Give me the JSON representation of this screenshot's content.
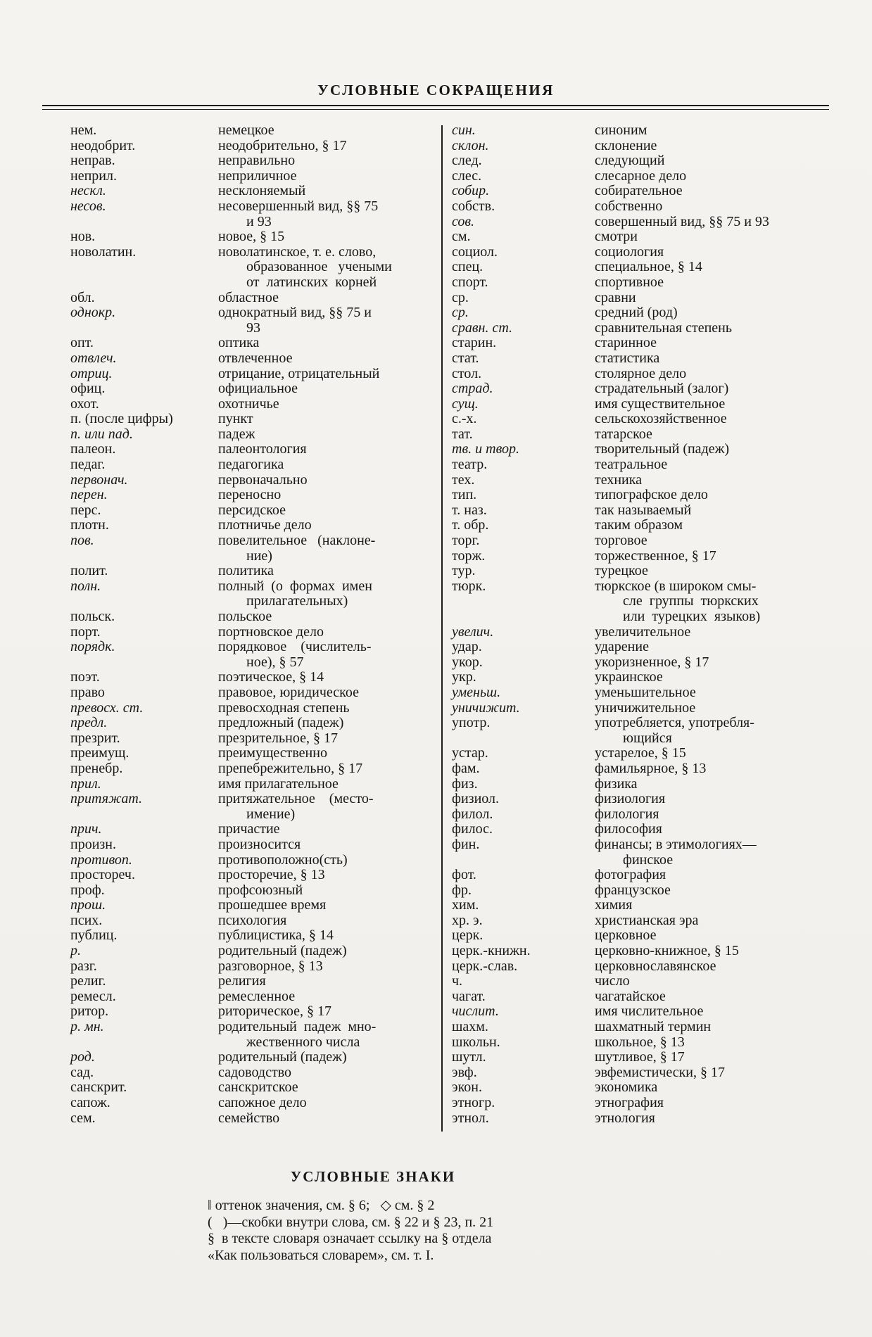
{
  "page": {
    "title": "УСЛОВНЫЕ СОКРАЩЕНИЯ",
    "signs": {
      "title": "УСЛОВНЫЕ ЗНАКИ",
      "lines": [
        "‖ оттенок значения, см. § 6;   ◇ см. § 2",
        "(   )—скобки внутри слова, см. § 22 и § 23, п. 21",
        "§  в тексте словаря означает ссылку на § отдела",
        "«Как пользоваться словарем», см. т. I."
      ]
    }
  },
  "abbreviations": {
    "left": [
      {
        "a": "нем.",
        "d": [
          "немецкое"
        ]
      },
      {
        "a": "неодобрит.",
        "d": [
          "неодобрительно, § 17"
        ]
      },
      {
        "a": "неправ.",
        "d": [
          "неправильно"
        ]
      },
      {
        "a": "неприл.",
        "d": [
          "неприличное"
        ]
      },
      {
        "a": "нескл.",
        "i": true,
        "d": [
          "несклоняемый"
        ]
      },
      {
        "a": "несов.",
        "i": true,
        "d": [
          "несовершенный вид, §§ 75",
          "и 93"
        ]
      },
      {
        "a": "нов.",
        "d": [
          "новое, § 15"
        ]
      },
      {
        "a": "новолатин.",
        "d": [
          "новолатинское, т. е. слово,",
          "образованное   учеными",
          "от  латинских  корней"
        ]
      },
      {
        "a": "обл.",
        "d": [
          "областное"
        ]
      },
      {
        "a": "однокр.",
        "i": true,
        "d": [
          "однократный вид, §§ 75 и",
          "93"
        ]
      },
      {
        "a": "опт.",
        "d": [
          "оптика"
        ]
      },
      {
        "a": "отвлеч.",
        "i": true,
        "d": [
          "отвлеченное"
        ]
      },
      {
        "a": "отриц.",
        "i": true,
        "d": [
          "отрицание, отрицательный"
        ]
      },
      {
        "a": "офиц.",
        "d": [
          "официальное"
        ]
      },
      {
        "a": "охот.",
        "d": [
          "охотничье"
        ]
      },
      {
        "a": "п. (после цифры)",
        "d": [
          "пункт"
        ]
      },
      {
        "a": "п. или пад.",
        "i": true,
        "d": [
          "падеж"
        ]
      },
      {
        "a": "палеон.",
        "d": [
          "палеонтология"
        ]
      },
      {
        "a": "педаг.",
        "d": [
          "педагогика"
        ]
      },
      {
        "a": "первонач.",
        "i": true,
        "d": [
          "первоначально"
        ]
      },
      {
        "a": "перен.",
        "i": true,
        "d": [
          "переносно"
        ]
      },
      {
        "a": "перс.",
        "d": [
          "персидское"
        ]
      },
      {
        "a": "плотн.",
        "d": [
          "плотничье дело"
        ]
      },
      {
        "a": "пов.",
        "i": true,
        "d": [
          "повелительное   (наклоне-",
          "ние)"
        ]
      },
      {
        "a": "полит.",
        "d": [
          "политика"
        ]
      },
      {
        "a": "полн.",
        "i": true,
        "d": [
          "полный  (о  формах  имен",
          "прилагательных)"
        ]
      },
      {
        "a": "польск.",
        "d": [
          "польское"
        ]
      },
      {
        "a": "порт.",
        "d": [
          "портновское дело"
        ]
      },
      {
        "a": "порядк.",
        "i": true,
        "d": [
          "порядковое    (числитель-",
          "ное), § 57"
        ]
      },
      {
        "a": "поэт.",
        "d": [
          "поэтическое, § 14"
        ]
      },
      {
        "a": "право",
        "d": [
          "правовое, юридическое"
        ]
      },
      {
        "a": "превосх. ст.",
        "i": true,
        "d": [
          "превосходная степень"
        ]
      },
      {
        "a": "предл.",
        "i": true,
        "d": [
          "предложный (падеж)"
        ]
      },
      {
        "a": "презрит.",
        "d": [
          "презрительное, § 17"
        ]
      },
      {
        "a": "преимущ.",
        "d": [
          "преимущественно"
        ]
      },
      {
        "a": "пренебр.",
        "d": [
          "препебрежительно, § 17"
        ]
      },
      {
        "a": "прил.",
        "i": true,
        "d": [
          "имя прилагательное"
        ]
      },
      {
        "a": "притяжат.",
        "i": true,
        "d": [
          "притяжательное    (место-",
          "имение)"
        ]
      },
      {
        "a": "прич.",
        "i": true,
        "d": [
          "причастие"
        ]
      },
      {
        "a": "произн.",
        "d": [
          "произносится"
        ]
      },
      {
        "a": "противоп.",
        "i": true,
        "d": [
          "противоположно(сть)"
        ]
      },
      {
        "a": "простореч.",
        "d": [
          "просторечие, § 13"
        ]
      },
      {
        "a": "проф.",
        "d": [
          "профсоюзный"
        ]
      },
      {
        "a": "прош.",
        "i": true,
        "d": [
          "прошедшее время"
        ]
      },
      {
        "a": "псих.",
        "d": [
          "психология"
        ]
      },
      {
        "a": "публиц.",
        "d": [
          "публицистика, § 14"
        ]
      },
      {
        "a": "р.",
        "i": true,
        "d": [
          "родительный (падеж)"
        ]
      },
      {
        "a": "разг.",
        "d": [
          "разговорное, § 13"
        ]
      },
      {
        "a": "религ.",
        "d": [
          "религия"
        ]
      },
      {
        "a": "ремесл.",
        "d": [
          "ремесленное"
        ]
      },
      {
        "a": "ритор.",
        "d": [
          "риторическое, § 17"
        ]
      },
      {
        "a": "р. мн.",
        "i": true,
        "d": [
          "родительный  падеж  мно-",
          "жественного числа"
        ]
      },
      {
        "a": "род.",
        "i": true,
        "d": [
          "родительный (падеж)"
        ]
      },
      {
        "a": "сад.",
        "d": [
          "садоводство"
        ]
      },
      {
        "a": "санскрит.",
        "d": [
          "санскритское"
        ]
      },
      {
        "a": "сапож.",
        "d": [
          "сапожное дело"
        ]
      },
      {
        "a": "сем.",
        "d": [
          "семейство"
        ]
      }
    ],
    "right": [
      {
        "a": "син.",
        "i": true,
        "d": [
          "синоним"
        ]
      },
      {
        "a": "склон.",
        "i": true,
        "d": [
          "склонение"
        ]
      },
      {
        "a": "след.",
        "d": [
          "следующий"
        ]
      },
      {
        "a": "слес.",
        "d": [
          "слесарное дело"
        ]
      },
      {
        "a": "собир.",
        "i": true,
        "d": [
          "собирательное"
        ]
      },
      {
        "a": "собств.",
        "d": [
          "собственно"
        ]
      },
      {
        "a": "сов.",
        "i": true,
        "d": [
          "совершенный вид, §§ 75 и 93"
        ]
      },
      {
        "a": "см.",
        "d": [
          "смотри"
        ]
      },
      {
        "a": "социол.",
        "d": [
          "социология"
        ]
      },
      {
        "a": "спец.",
        "d": [
          "специальное, § 14"
        ]
      },
      {
        "a": "спорт.",
        "d": [
          "спортивное"
        ]
      },
      {
        "a": "ср.",
        "d": [
          "сравни"
        ]
      },
      {
        "a": "ср.",
        "i": true,
        "d": [
          "средний (род)"
        ]
      },
      {
        "a": "сравн. ст.",
        "i": true,
        "d": [
          "сравнительная степень"
        ]
      },
      {
        "a": "старин.",
        "d": [
          "старинное"
        ]
      },
      {
        "a": "стат.",
        "d": [
          "статистика"
        ]
      },
      {
        "a": "стол.",
        "d": [
          "столярное дело"
        ]
      },
      {
        "a": "страд.",
        "i": true,
        "d": [
          "страдательный (залог)"
        ]
      },
      {
        "a": "сущ.",
        "i": true,
        "d": [
          "имя существительное"
        ]
      },
      {
        "a": "с.-х.",
        "d": [
          "сельскохозяйственное"
        ]
      },
      {
        "a": "тат.",
        "d": [
          "татарское"
        ]
      },
      {
        "a": "тв. и твор.",
        "i": true,
        "d": [
          "творительный (падеж)"
        ]
      },
      {
        "a": "театр.",
        "d": [
          "театральное"
        ]
      },
      {
        "a": "тех.",
        "d": [
          "техника"
        ]
      },
      {
        "a": "тип.",
        "d": [
          "типографское дело"
        ]
      },
      {
        "a": "т. наз.",
        "d": [
          "так называемый"
        ]
      },
      {
        "a": "т. обр.",
        "d": [
          "таким образом"
        ]
      },
      {
        "a": "торг.",
        "d": [
          "торговое"
        ]
      },
      {
        "a": "торж.",
        "d": [
          "торжественное, § 17"
        ]
      },
      {
        "a": "тур.",
        "d": [
          "турецкое"
        ]
      },
      {
        "a": "тюрк.",
        "d": [
          "тюркское (в широком смы-",
          "сле  группы  тюркских",
          "или  турецких  языков)"
        ]
      },
      {
        "a": "увелич.",
        "i": true,
        "d": [
          "увеличительное"
        ]
      },
      {
        "a": "удар.",
        "d": [
          "ударение"
        ]
      },
      {
        "a": "укор.",
        "d": [
          "укоризненное, § 17"
        ]
      },
      {
        "a": "укр.",
        "d": [
          "украинское"
        ]
      },
      {
        "a": "уменьш.",
        "i": true,
        "d": [
          "уменьшительное"
        ]
      },
      {
        "a": "уничижит.",
        "i": true,
        "d": [
          "уничижительное"
        ]
      },
      {
        "a": "употр.",
        "d": [
          "употребляется, употребля-",
          "ющийся"
        ]
      },
      {
        "a": "устар.",
        "d": [
          "устарелое, § 15"
        ]
      },
      {
        "a": "фам.",
        "d": [
          "фамильярное, § 13"
        ]
      },
      {
        "a": "физ.",
        "d": [
          "физика"
        ]
      },
      {
        "a": "физиол.",
        "d": [
          "физиология"
        ]
      },
      {
        "a": "филол.",
        "d": [
          "филология"
        ]
      },
      {
        "a": "филос.",
        "d": [
          "философия"
        ]
      },
      {
        "a": "фин.",
        "d": [
          "финансы; в этимологиях—",
          "финское"
        ]
      },
      {
        "a": "фот.",
        "d": [
          "фотография"
        ]
      },
      {
        "a": "фр.",
        "d": [
          "французское"
        ]
      },
      {
        "a": "хим.",
        "d": [
          "химия"
        ]
      },
      {
        "a": "хр. э.",
        "d": [
          "христианская эра"
        ]
      },
      {
        "a": "церк.",
        "d": [
          "церковное"
        ]
      },
      {
        "a": "церк.-книжн.",
        "d": [
          "церковно-книжное, § 15"
        ]
      },
      {
        "a": "церк.-слав.",
        "d": [
          "церковнославянское"
        ]
      },
      {
        "a": "ч.",
        "d": [
          "число"
        ]
      },
      {
        "a": "чагат.",
        "d": [
          "чагатайское"
        ]
      },
      {
        "a": "числит.",
        "i": true,
        "d": [
          "имя числительное"
        ]
      },
      {
        "a": "шахм.",
        "d": [
          "шахматный термин"
        ]
      },
      {
        "a": "школьн.",
        "d": [
          "школьное, § 13"
        ]
      },
      {
        "a": "шутл.",
        "d": [
          "шутливое, § 17"
        ]
      },
      {
        "a": "эвф.",
        "d": [
          "эвфемистически, § 17"
        ]
      },
      {
        "a": "экон.",
        "d": [
          "экономика"
        ]
      },
      {
        "a": "этногр.",
        "d": [
          "этнография"
        ]
      },
      {
        "a": "этнол.",
        "d": [
          "этнология"
        ]
      }
    ]
  }
}
